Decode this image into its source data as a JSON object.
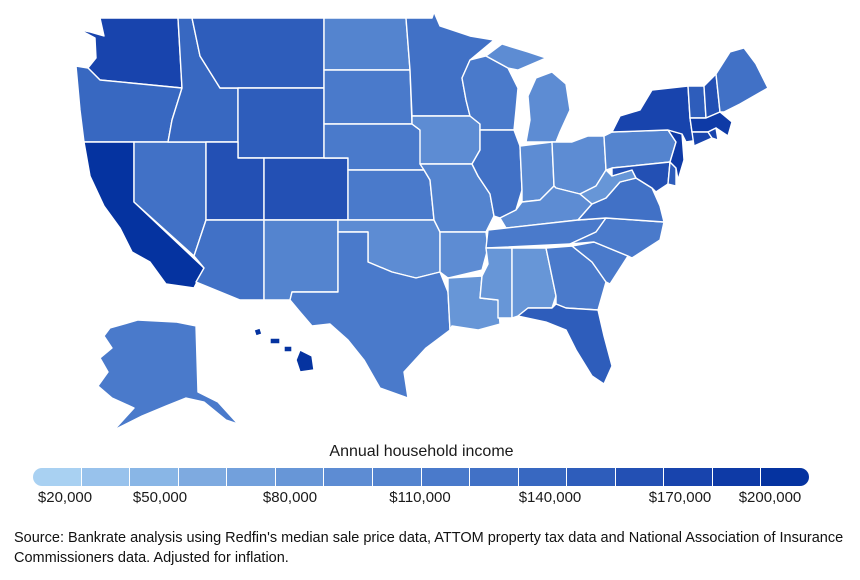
{
  "legend": {
    "title": "Annual household income",
    "ticks": [
      "$20,000",
      "$50,000",
      "$80,000",
      "$110,000",
      "$140,000",
      "$170,000",
      "$200,000"
    ],
    "colors": [
      "#a9d1f2",
      "#98c2ec",
      "#89b6e6",
      "#7eaae0",
      "#72a0dc",
      "#6796d7",
      "#5d8cd3",
      "#5484cf",
      "#4a7acb",
      "#4171c6",
      "#3868c1",
      "#2e5dbb",
      "#2350b4",
      "#1844ad",
      "#0e3aa6",
      "#0533a0"
    ]
  },
  "source": "Source: Bankrate analysis using Redfin's median sale price data, ATTOM property tax data and National Association of Insurance Commissioners data. Adjusted for inflation.",
  "map_data": {
    "value_key": "Annual household income",
    "states": {
      "WA": 170000,
      "OR": 140000,
      "CA": 200000,
      "NV": 125000,
      "ID": 135000,
      "MT": 150000,
      "WY": 150000,
      "UT": 160000,
      "CO": 165000,
      "AZ": 130000,
      "NM": 105000,
      "ND": 100000,
      "SD": 115000,
      "NE": 120000,
      "KS": 110000,
      "OK": 95000,
      "TX": 120000,
      "MN": 130000,
      "IA": 95000,
      "MO": 100000,
      "AR": 90000,
      "LA": 85000,
      "WI": 110000,
      "IL": 130000,
      "MI": 95000,
      "IN": 90000,
      "OH": 90000,
      "KY": 95000,
      "TN": 110000,
      "MS": 80000,
      "AL": 85000,
      "GA": 120000,
      "FL": 155000,
      "SC": 120000,
      "NC": 115000,
      "VA": 130000,
      "WV": 75000,
      "PA": 100000,
      "NY": 180000,
      "VT": 150000,
      "NH": 160000,
      "ME": 130000,
      "MA": 190000,
      "RI": 170000,
      "CT": 180000,
      "NJ": 190000,
      "DE": 150000,
      "MD": 160000,
      "AK": 115000,
      "HI": 200000
    }
  }
}
